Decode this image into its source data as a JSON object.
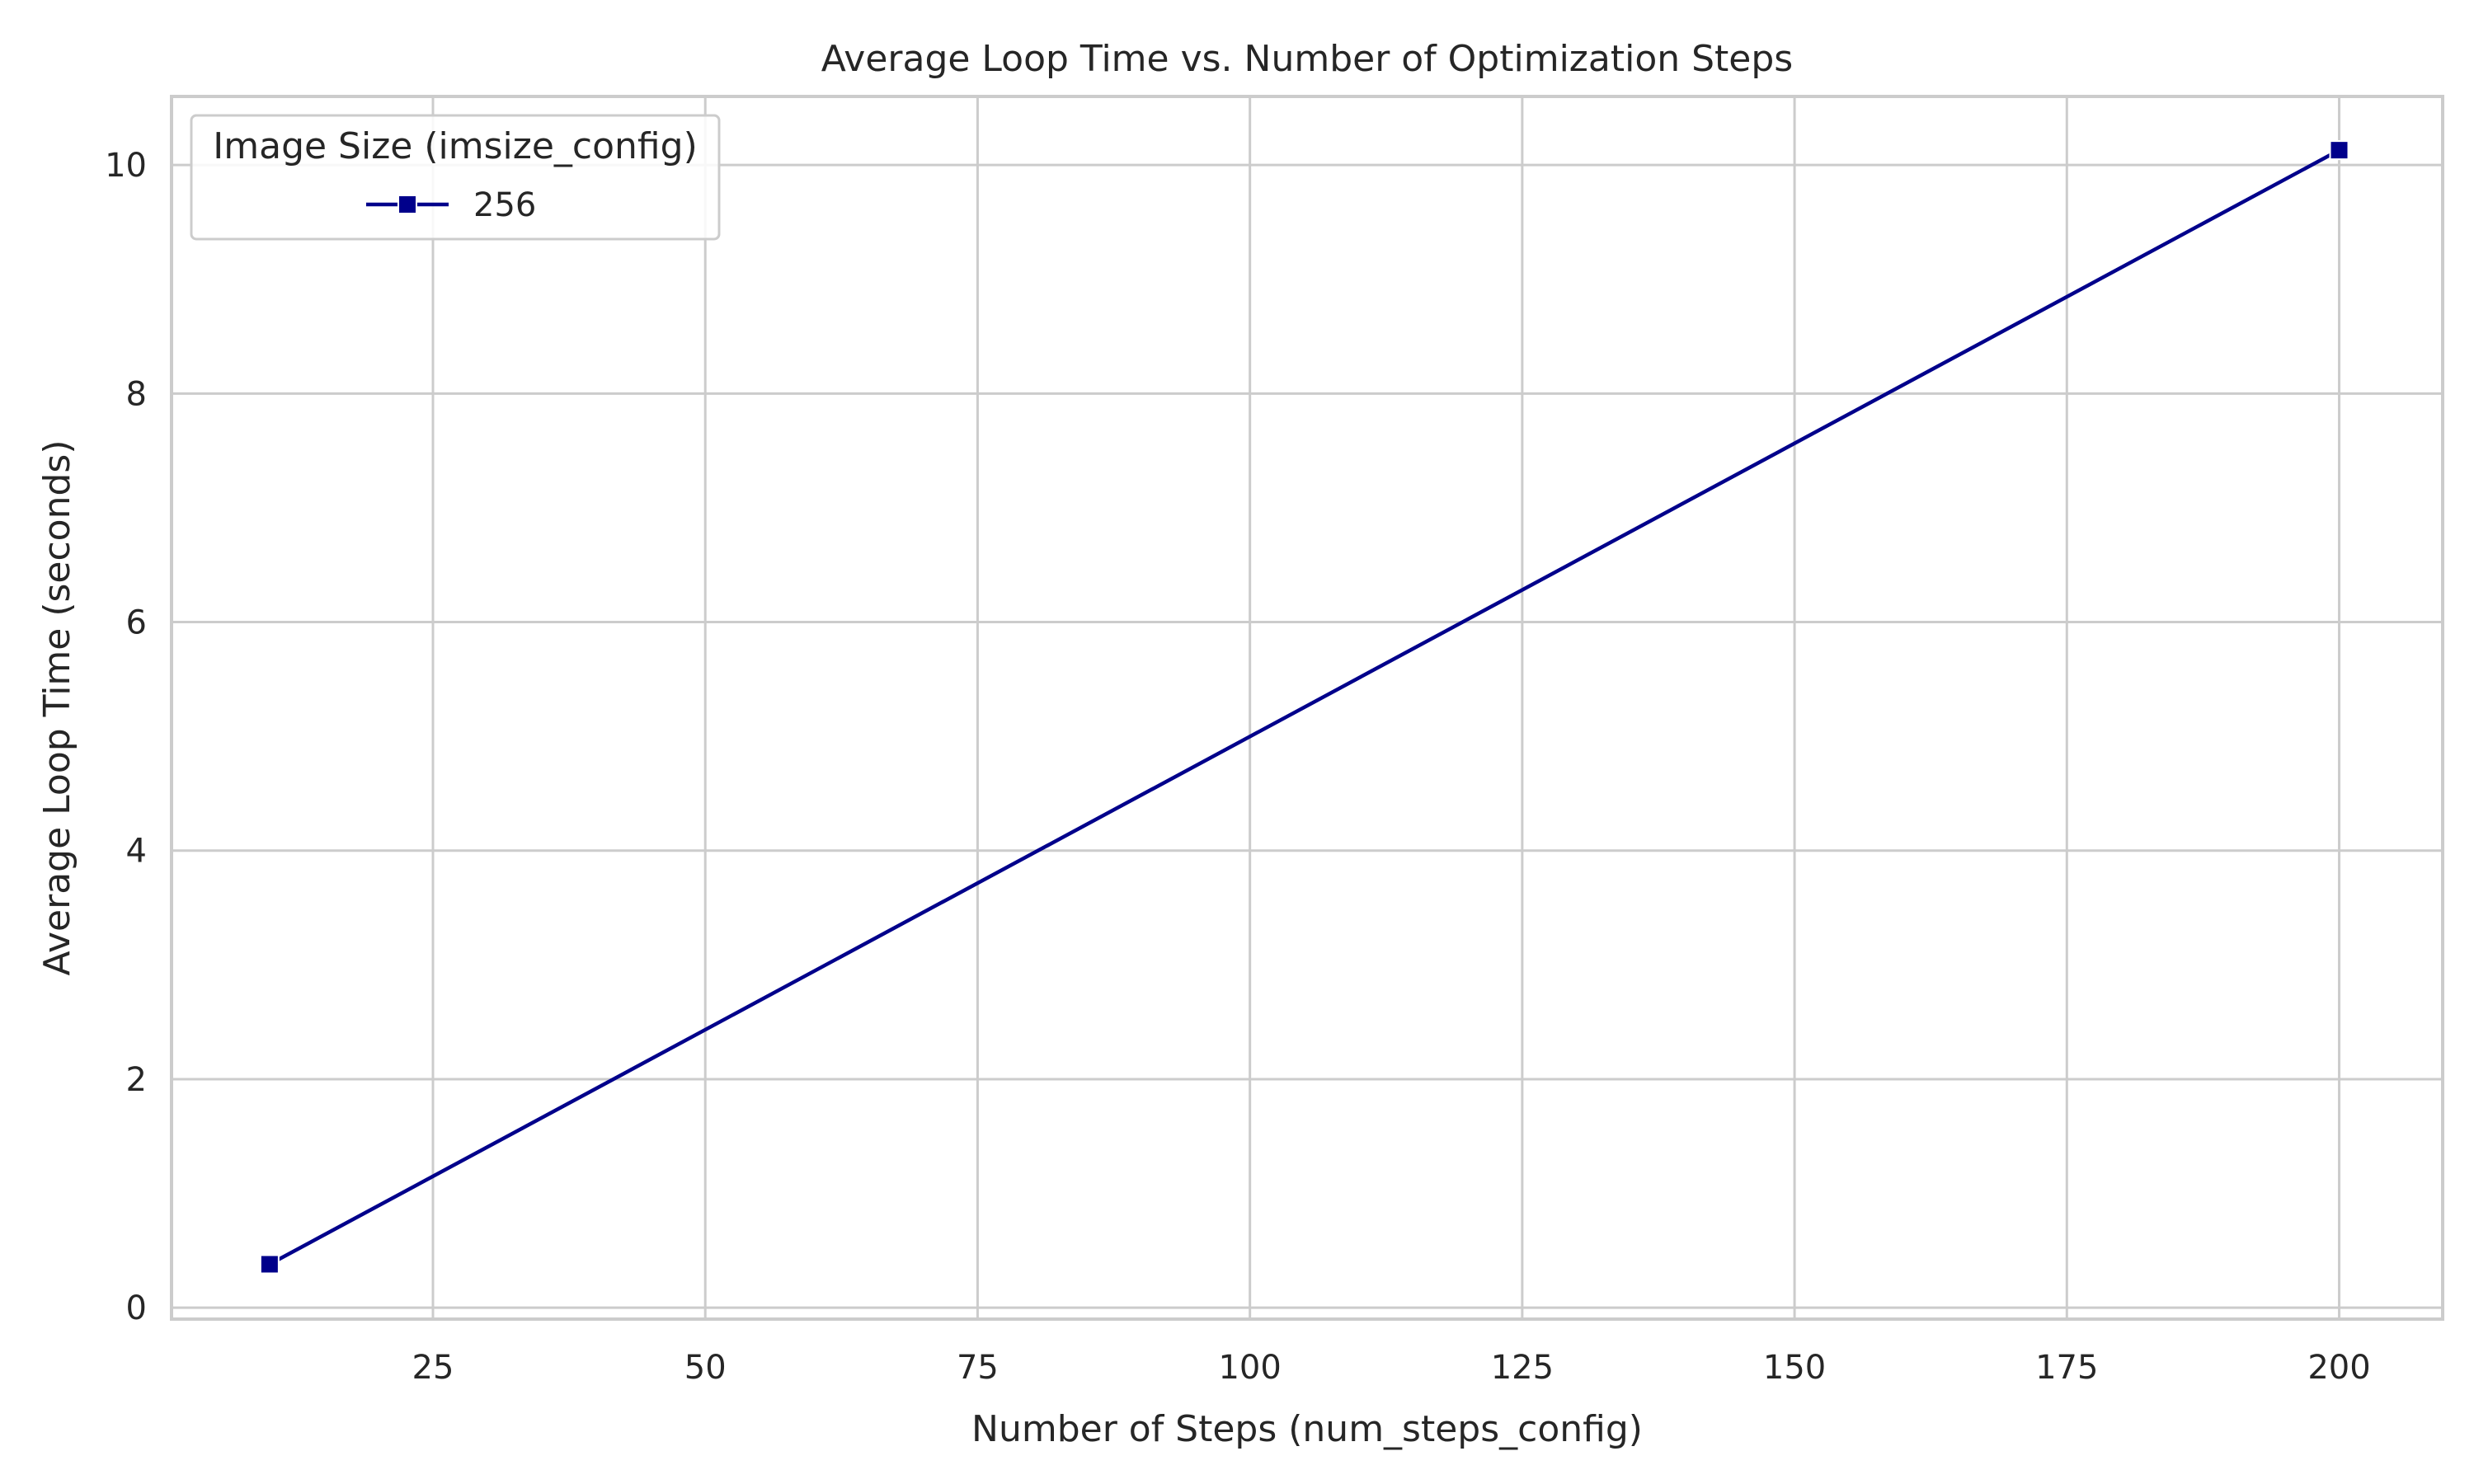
{
  "chart_data": {
    "type": "line",
    "title": "Average Loop Time vs. Number of Optimization Steps",
    "xlabel": "Number of Steps (num_steps_config)",
    "ylabel": "Average Loop Time (seconds)",
    "xlim": [
      1,
      209.5
    ],
    "ylim": [
      -0.1,
      10.6
    ],
    "xticks": [
      25,
      50,
      75,
      100,
      125,
      150,
      175,
      200
    ],
    "yticks": [
      0,
      2,
      4,
      6,
      8,
      10
    ],
    "grid": true,
    "legend": {
      "title": "Image Size (imsize_config)",
      "placement": "top-left"
    },
    "series": [
      {
        "name": "256",
        "color": "#00008b",
        "marker": "square",
        "x": [
          10,
          200
        ],
        "y": [
          0.38,
          10.13
        ]
      }
    ]
  }
}
